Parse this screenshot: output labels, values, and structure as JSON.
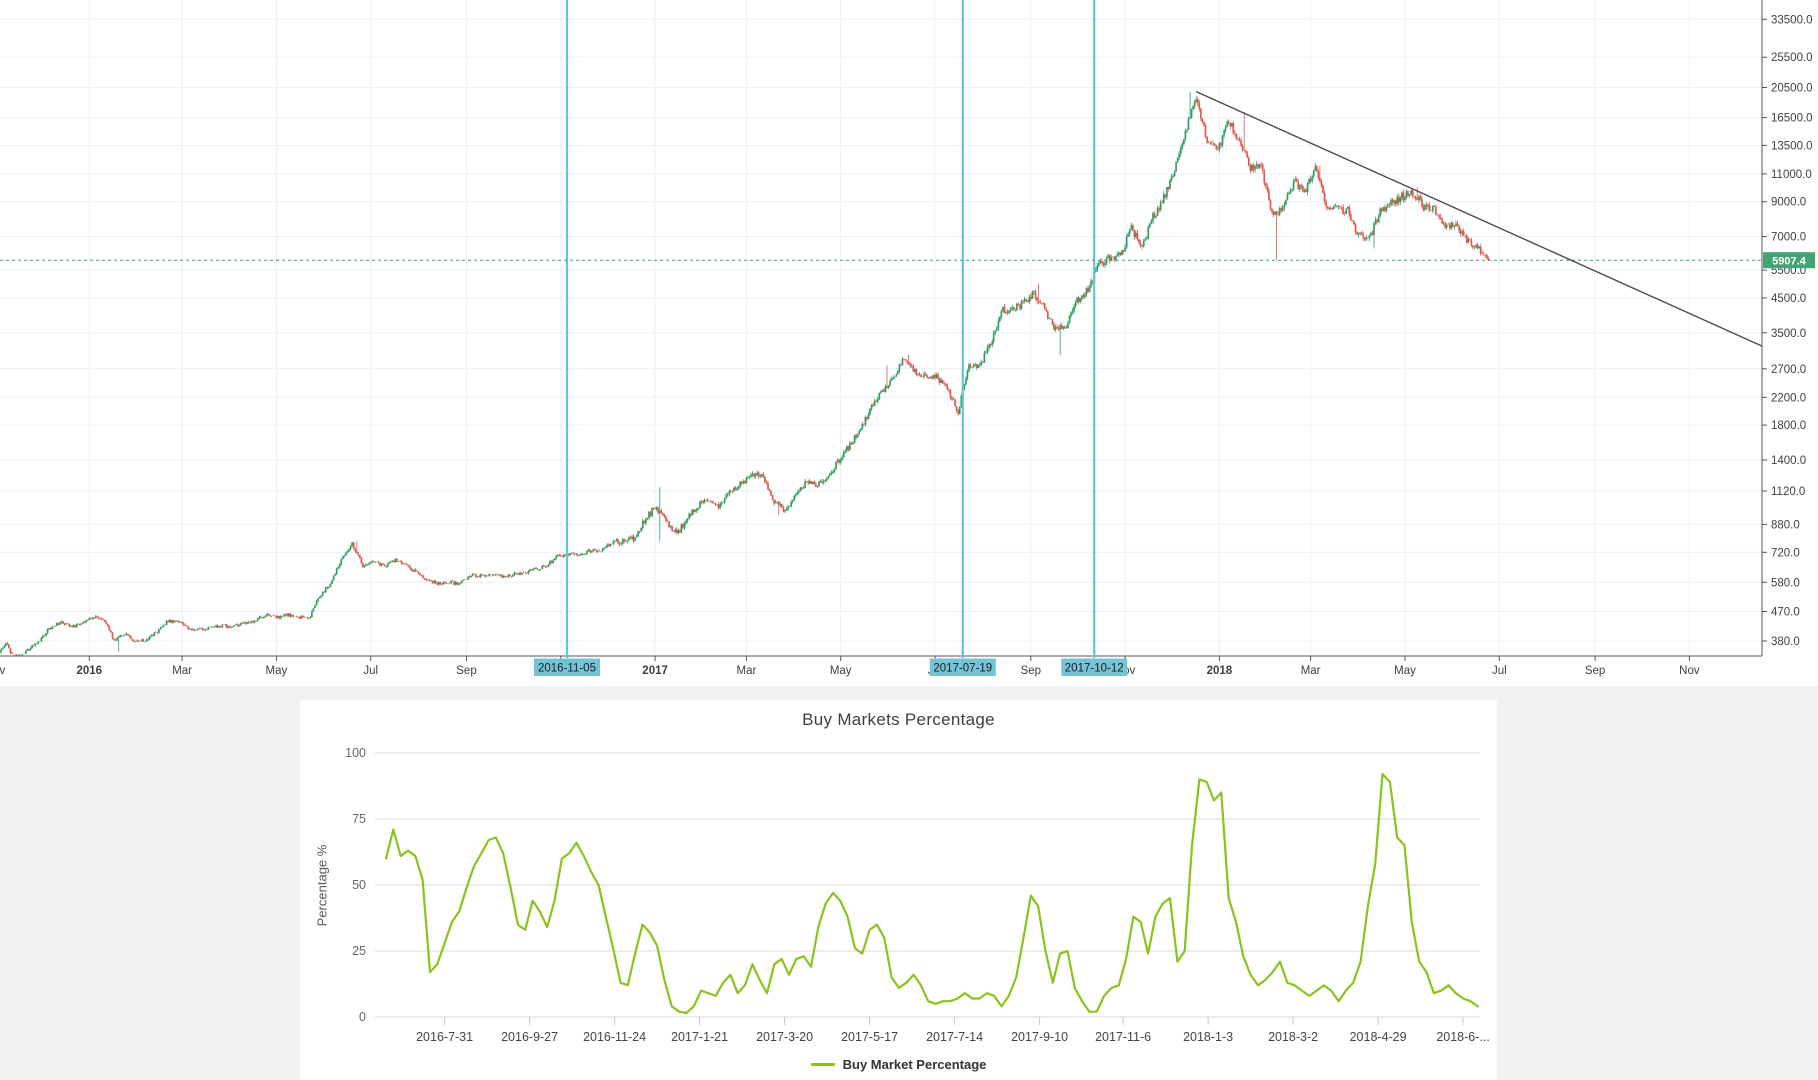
{
  "chart_data": [
    {
      "type": "candlestick",
      "name": "price-history-log-chart",
      "last_price": 5907.4,
      "last_price_label": "5907.4",
      "y_ticks": [
        380,
        470,
        580,
        720,
        880,
        1120,
        1400,
        1800,
        2200,
        2700,
        3500,
        4500,
        5500,
        7000,
        9000,
        11000,
        13500,
        16500,
        20500,
        25500,
        33500
      ],
      "x_ticks": [
        {
          "label": "Nov",
          "date": "2015-11-01"
        },
        {
          "label": "2016",
          "date": "2016-01-01"
        },
        {
          "label": "Mar",
          "date": "2016-03-01"
        },
        {
          "label": "May",
          "date": "2016-05-01"
        },
        {
          "label": "Jul",
          "date": "2016-07-01"
        },
        {
          "label": "Sep",
          "date": "2016-09-01"
        },
        {
          "label": "2017",
          "date": "2017-01-01"
        },
        {
          "label": "Mar",
          "date": "2017-03-01"
        },
        {
          "label": "May",
          "date": "2017-05-01"
        },
        {
          "label": "Jul",
          "date": "2017-07-01"
        },
        {
          "label": "Sep",
          "date": "2017-09-01"
        },
        {
          "label": "Nov",
          "date": "2017-11-01"
        },
        {
          "label": "2018",
          "date": "2018-01-01"
        },
        {
          "label": "Mar",
          "date": "2018-03-01"
        },
        {
          "label": "May",
          "date": "2018-05-01"
        },
        {
          "label": "Jul",
          "date": "2018-07-01"
        },
        {
          "label": "Sep",
          "date": "2018-09-01"
        },
        {
          "label": "Nov",
          "date": "2018-11-01"
        }
      ],
      "gridline_only_dates": [
        "2016-11-01"
      ],
      "highlight_dates": [
        {
          "label": "2016-11-05",
          "date": "2016-11-05"
        },
        {
          "label": "2017-07-19",
          "date": "2017-07-19"
        },
        {
          "label": "2017-10-12",
          "date": "2017-10-12"
        }
      ],
      "trendline": {
        "start_date": "2017-12-17",
        "start_price": 19900,
        "end_date": "2018-12-18",
        "end_price": 3180
      },
      "series": {
        "start_date": "2015-11-01",
        "interval_days": 7,
        "closes": [
          330,
          375,
          320,
          355,
          378,
          415,
          435,
          422,
          430,
          448,
          448,
          382,
          402,
          378,
          382,
          408,
          440,
          435,
          412,
          415,
          417,
          425,
          420,
          430,
          440,
          458,
          449,
          459,
          453,
          444,
          526,
          575,
          685,
          764,
          655,
          680,
          650,
          680,
          655,
          620,
          590,
          575,
          580,
          575,
          610,
          607,
          610,
          605,
          615,
          618,
          640,
          655,
          700,
          710,
          705,
          730,
          735,
          770,
          780,
          795,
          900,
          1000,
          900,
          825,
          920,
          1015,
          1050,
          1000,
          1120,
          1180,
          1270,
          1230,
          1040,
          965,
          1100,
          1190,
          1175,
          1250,
          1400,
          1560,
          1760,
          2050,
          2300,
          2520,
          2950,
          2650,
          2550,
          2540,
          2330,
          1990,
          2730,
          2750,
          3250,
          4100,
          4150,
          4350,
          4600,
          4150,
          3600,
          3680,
          4400,
          4780,
          5700,
          5990,
          6150,
          7400,
          6450,
          8040,
          9300,
          11250,
          15000,
          19100,
          14000,
          12900,
          16200,
          13800,
          11600,
          11800,
          8200,
          8560,
          10400,
          9600,
          11500,
          8800,
          8500,
          8450,
          7000,
          6900,
          8350,
          8900,
          9350,
          9650,
          8700,
          8520,
          7360,
          7650,
          6780,
          6510,
          5907
        ],
        "spikes": {
          "0": {
            "high": 500
          },
          "2": {
            "low": 302
          },
          "11": {
            "low": 352
          },
          "33": {
            "high": 780
          },
          "61": {
            "high": 1150,
            "low": 780
          },
          "70": {
            "high": 1290
          },
          "72": {
            "low": 940
          },
          "82": {
            "high": 2760
          },
          "84": {
            "high": 3000
          },
          "89": {
            "low": 1830
          },
          "96": {
            "high": 4980
          },
          "98": {
            "low": 2980
          },
          "110": {
            "high": 19900
          },
          "115": {
            "high": 17200
          },
          "118": {
            "low": 5920
          },
          "122": {
            "high": 11700
          },
          "127": {
            "low": 6430
          },
          "131": {
            "high": 9990
          },
          "138": {
            "low": 5780
          }
        }
      },
      "colors": {
        "up": "#2f9e62",
        "down": "#e0564f",
        "grid": "#e9f0f6",
        "axis": "#555555",
        "tick_text": "#3f3f3f",
        "marker_line": "#62c6d9",
        "marker_box": "#74c4d6",
        "marker_text": "#1c1c1c",
        "dashed_line": "#3a9d85",
        "price_label_bg": "#43a476",
        "price_label_text": "#ffffff",
        "trendline": "#4a4a4a"
      }
    },
    {
      "type": "line",
      "name": "buy-markets-percentage-chart",
      "title": "Buy Markets Percentage",
      "y_label": "Percentage %",
      "legend_label": "Buy Market Percentage",
      "line_color": "#8cc21d",
      "y_ticks": [
        0,
        25,
        50,
        75,
        100
      ],
      "ylim": [
        0,
        100
      ],
      "x_ticks": [
        {
          "label": "2016-7-31",
          "date": "2016-07-31"
        },
        {
          "label": "2016-9-27",
          "date": "2016-09-27"
        },
        {
          "label": "2016-11-24",
          "date": "2016-11-24"
        },
        {
          "label": "2017-1-21",
          "date": "2017-01-21"
        },
        {
          "label": "2017-3-20",
          "date": "2017-03-20"
        },
        {
          "label": "2017-5-17",
          "date": "2017-05-17"
        },
        {
          "label": "2017-7-14",
          "date": "2017-07-14"
        },
        {
          "label": "2017-9-10",
          "date": "2017-09-10"
        },
        {
          "label": "2017-11-6",
          "date": "2017-11-06"
        },
        {
          "label": "2018-1-3",
          "date": "2018-01-03"
        },
        {
          "label": "2018-3-2",
          "date": "2018-03-02"
        },
        {
          "label": "2018-4-29",
          "date": "2018-04-29"
        },
        {
          "label": "2018-6-...",
          "date": "2018-06-26"
        }
      ],
      "series": {
        "start_date": "2016-06-21",
        "interval_days": 5,
        "values": [
          60,
          71,
          61,
          63,
          61,
          52,
          17,
          20,
          28,
          36,
          40,
          49,
          57,
          62,
          67,
          68,
          62,
          49,
          35,
          33,
          44,
          40,
          34,
          44,
          60,
          62,
          66,
          61,
          55,
          50,
          38,
          26,
          13,
          12,
          24,
          35,
          32,
          27,
          14,
          4,
          2,
          1.5,
          4,
          10,
          9,
          8,
          13,
          16,
          9,
          12,
          20,
          14,
          9,
          20,
          22,
          16,
          22,
          23,
          19,
          34,
          43,
          47,
          44,
          38,
          26,
          24,
          33,
          35,
          30,
          15,
          11,
          13,
          16,
          12,
          6,
          5,
          6,
          6,
          7,
          9,
          7,
          7,
          9,
          8,
          4,
          8,
          15,
          30,
          46,
          42,
          25,
          13,
          24,
          25,
          11,
          6,
          2,
          2,
          8,
          11,
          12,
          22,
          38,
          36,
          24,
          38,
          43,
          45,
          21,
          25,
          65,
          90,
          89,
          82,
          85,
          45,
          36,
          23,
          16,
          12,
          14,
          17,
          21,
          13,
          12,
          10,
          8,
          10,
          12,
          10,
          6,
          10,
          13,
          21,
          42,
          58,
          92,
          89,
          68,
          65,
          36,
          21,
          17,
          9,
          10,
          12,
          9,
          7,
          6,
          4
        ]
      },
      "colors": {
        "grid": "#dadada",
        "tick_text": "#444444",
        "ytick_text": "#666666",
        "tick_mark": "#c9c9c9"
      }
    }
  ]
}
